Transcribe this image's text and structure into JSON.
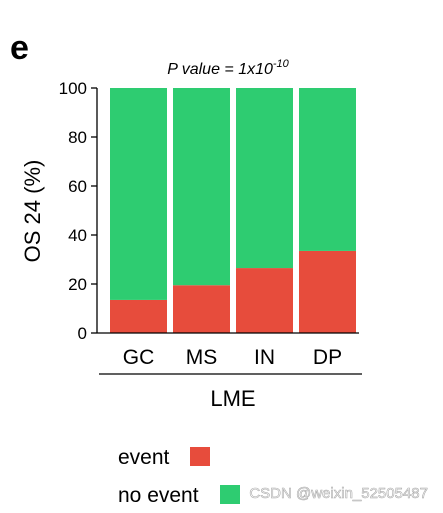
{
  "panel_label": "e",
  "chart_data": {
    "type": "bar",
    "stacked": true,
    "title_prefix": "P value = 1x10",
    "title_exponent": "-10",
    "categories": [
      "GC",
      "MS",
      "IN",
      "DP"
    ],
    "series": [
      {
        "name": "event",
        "values": [
          13.5,
          19.5,
          26.5,
          33.5
        ],
        "color": "#e74c3c"
      },
      {
        "name": "no event",
        "values": [
          86.5,
          80.5,
          73.5,
          66.5
        ],
        "color": "#2ecc71"
      }
    ],
    "ylabel": "OS 24 (%)",
    "xlabel": "LME",
    "ylim": [
      0,
      100
    ],
    "yticks": [
      0,
      20,
      40,
      60,
      80,
      100
    ],
    "grid": false,
    "legend_position": "bottom-left"
  },
  "watermark": "CSDN @weixin_52505487"
}
